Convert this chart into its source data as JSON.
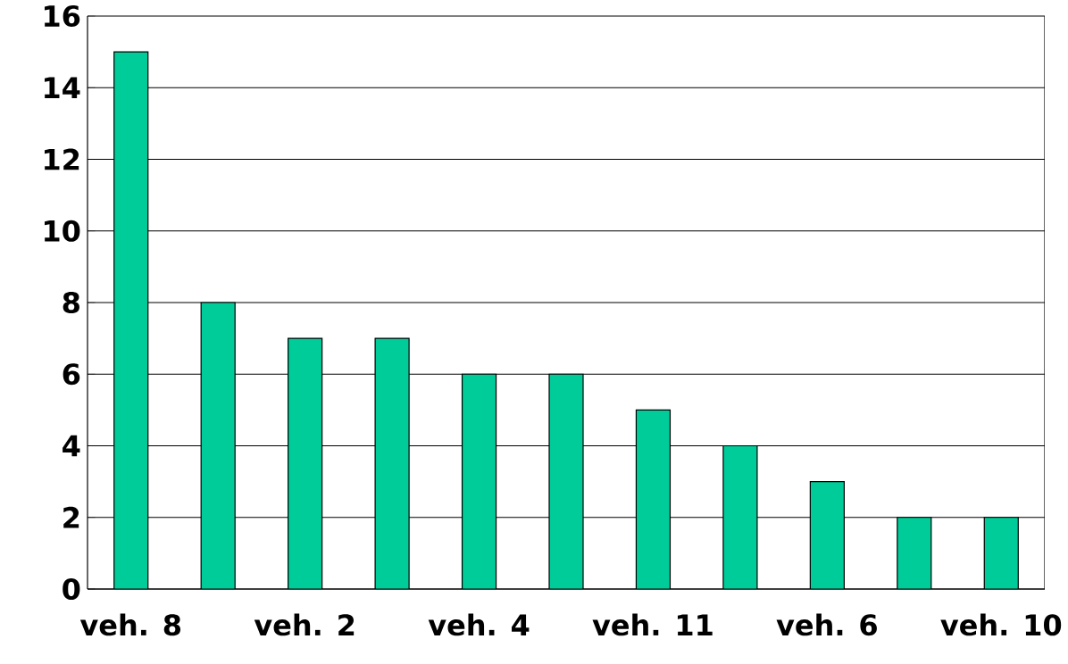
{
  "chart_data": {
    "type": "bar",
    "categories": [
      "veh. 8",
      null,
      "veh. 2",
      null,
      "veh. 4",
      null,
      "veh. 11",
      null,
      "veh. 6",
      null,
      "veh. 10"
    ],
    "values": [
      15,
      8,
      7,
      7,
      6,
      6,
      5,
      4,
      3,
      2,
      2
    ],
    "color": "#00cc99",
    "ylim": [
      0,
      16
    ],
    "yticks": [
      0,
      2,
      4,
      6,
      8,
      10,
      12,
      14,
      16
    ],
    "grid": "y"
  }
}
